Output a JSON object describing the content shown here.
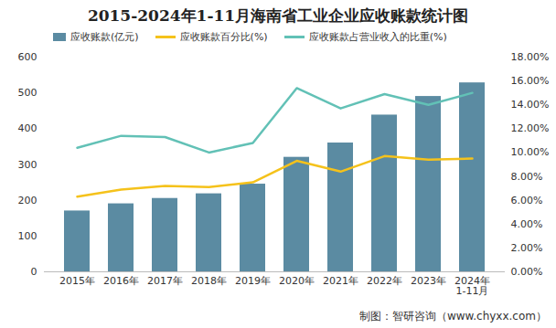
{
  "chart_data": {
    "type": "bar",
    "title": "2015-2024年1-11月海南省工业企业应收账款统计图",
    "caption": "制图：智研咨询（www.chyxx.com）",
    "categories": [
      "2015年",
      "2016年",
      "2017年",
      "2018年",
      "2019年",
      "2020年",
      "2021年",
      "2022年",
      "2023年",
      "2024年\n1-11月"
    ],
    "series": [
      {
        "name": "应收账款(亿元)",
        "type": "bar",
        "color": "#5b8ba2",
        "values": [
          170,
          190,
          205,
          218,
          245,
          320,
          360,
          438,
          490,
          528
        ]
      },
      {
        "name": "应收账款百分比(%)",
        "type": "line",
        "axis": "y2",
        "color": "#f5c21b",
        "values": [
          6.3,
          6.9,
          7.2,
          7.1,
          7.5,
          9.3,
          8.4,
          9.7,
          9.4,
          9.5
        ]
      },
      {
        "name": "应收账款占营业收入的比重(%)",
        "type": "line",
        "axis": "y2",
        "color": "#62c1b6",
        "values": [
          10.4,
          11.4,
          11.3,
          10.0,
          10.8,
          15.4,
          13.7,
          14.9,
          14.0,
          15.0
        ]
      }
    ],
    "ylim": [
      0,
      600
    ],
    "yticks": [
      0,
      100,
      200,
      300,
      400,
      500,
      600
    ],
    "y2lim": [
      0,
      18
    ],
    "y2ticks": [
      {
        "value": 0,
        "label": "0.00%"
      },
      {
        "value": 2,
        "label": "2.00%"
      },
      {
        "value": 4,
        "label": "4.00%"
      },
      {
        "value": 6,
        "label": "6.00%"
      },
      {
        "value": 8,
        "label": "8.00%"
      },
      {
        "value": 10,
        "label": "10.00%"
      },
      {
        "value": 12,
        "label": "12.00%"
      },
      {
        "value": 14,
        "label": "14.00%"
      },
      {
        "value": 16,
        "label": "16.00%"
      },
      {
        "value": 18,
        "label": "18.00%"
      }
    ],
    "grid": false,
    "legend": "top"
  }
}
